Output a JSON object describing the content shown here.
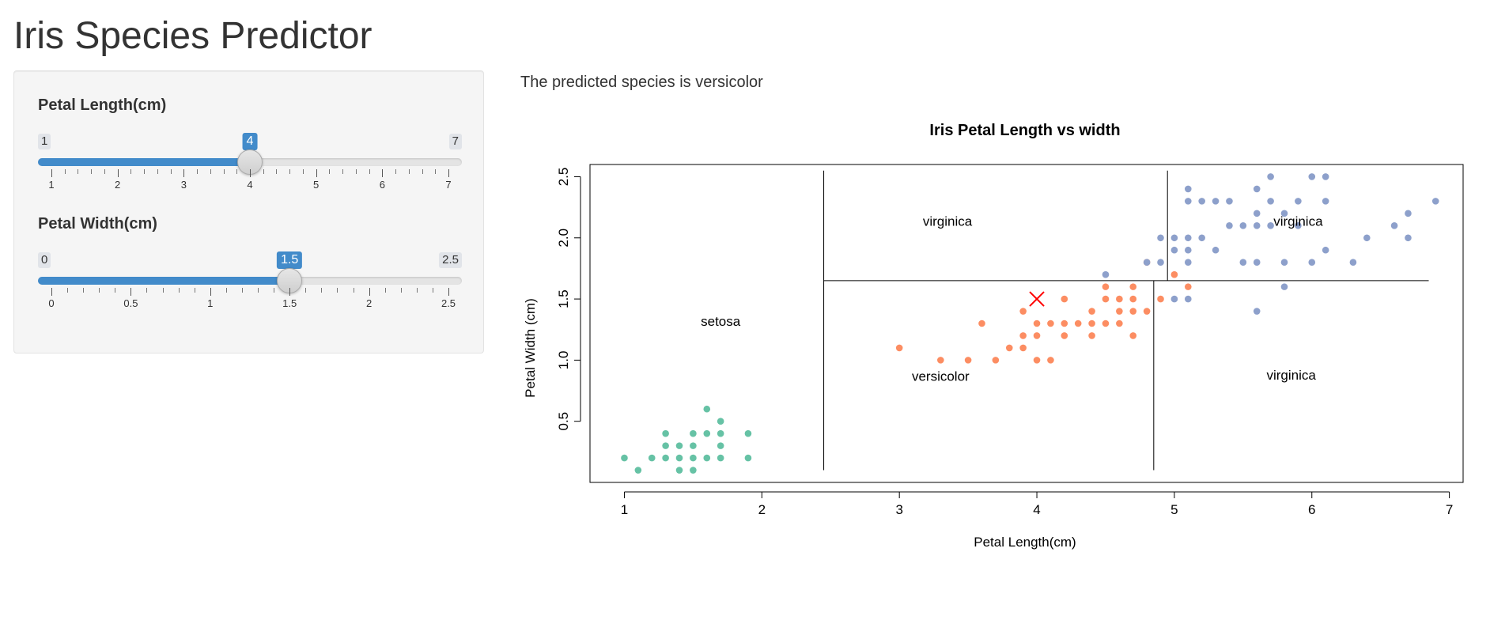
{
  "app": {
    "title": "Iris Species Predictor"
  },
  "sidebar": {
    "petal_length": {
      "label": "Petal Length(cm)",
      "min_label": "1",
      "max_label": "7",
      "value_label": "4",
      "value": 4,
      "min": 1,
      "max": 7,
      "ticks": [
        "1",
        "2",
        "3",
        "4",
        "5",
        "6",
        "7"
      ],
      "minor_per_major": 4
    },
    "petal_width": {
      "label": "Petal Width(cm)",
      "min_label": "0",
      "max_label": "2.5",
      "value_label": "1.5",
      "value": 1.5,
      "min": 0,
      "max": 2.5,
      "ticks": [
        "0",
        "0.5",
        "1",
        "1.5",
        "2",
        "2.5"
      ],
      "minor_per_major": 4
    }
  },
  "main": {
    "prediction_text": "The predicted species is versicolor"
  },
  "colors": {
    "accent": "#428bca",
    "setosa": "#66c2a5",
    "versicolor": "#fc8d62",
    "virginica": "#8da0cb",
    "marker": "#ff0000"
  },
  "chart_data": {
    "type": "scatter",
    "title": "Iris Petal Length vs width",
    "xlabel": "Petal Length(cm)",
    "ylabel": "Petal Width (cm)",
    "xlim": [
      0.75,
      7.1
    ],
    "ylim": [
      0.0,
      2.6
    ],
    "xticks": [
      "1",
      "2",
      "3",
      "4",
      "5",
      "6",
      "7"
    ],
    "yticks": [
      "0.5",
      "1.0",
      "1.5",
      "2.0",
      "2.5"
    ],
    "series": [
      {
        "name": "setosa",
        "color": "#66c2a5",
        "points": [
          [
            1.0,
            0.2
          ],
          [
            1.1,
            0.1
          ],
          [
            1.2,
            0.2
          ],
          [
            1.3,
            0.2
          ],
          [
            1.3,
            0.3
          ],
          [
            1.3,
            0.4
          ],
          [
            1.4,
            0.1
          ],
          [
            1.4,
            0.2
          ],
          [
            1.4,
            0.3
          ],
          [
            1.5,
            0.1
          ],
          [
            1.5,
            0.2
          ],
          [
            1.5,
            0.3
          ],
          [
            1.5,
            0.4
          ],
          [
            1.6,
            0.2
          ],
          [
            1.6,
            0.4
          ],
          [
            1.6,
            0.6
          ],
          [
            1.7,
            0.2
          ],
          [
            1.7,
            0.3
          ],
          [
            1.7,
            0.4
          ],
          [
            1.7,
            0.5
          ],
          [
            1.9,
            0.2
          ],
          [
            1.9,
            0.4
          ]
        ]
      },
      {
        "name": "versicolor",
        "color": "#fc8d62",
        "points": [
          [
            3.0,
            1.1
          ],
          [
            3.3,
            1.0
          ],
          [
            3.5,
            1.0
          ],
          [
            3.6,
            1.3
          ],
          [
            3.7,
            1.0
          ],
          [
            3.8,
            1.1
          ],
          [
            3.9,
            1.1
          ],
          [
            3.9,
            1.2
          ],
          [
            3.9,
            1.4
          ],
          [
            4.0,
            1.0
          ],
          [
            4.0,
            1.2
          ],
          [
            4.0,
            1.3
          ],
          [
            4.1,
            1.0
          ],
          [
            4.1,
            1.3
          ],
          [
            4.2,
            1.2
          ],
          [
            4.2,
            1.3
          ],
          [
            4.2,
            1.5
          ],
          [
            4.3,
            1.3
          ],
          [
            4.4,
            1.2
          ],
          [
            4.4,
            1.3
          ],
          [
            4.4,
            1.4
          ],
          [
            4.5,
            1.3
          ],
          [
            4.5,
            1.5
          ],
          [
            4.5,
            1.6
          ],
          [
            4.6,
            1.3
          ],
          [
            4.6,
            1.4
          ],
          [
            4.6,
            1.5
          ],
          [
            4.7,
            1.2
          ],
          [
            4.7,
            1.4
          ],
          [
            4.7,
            1.5
          ],
          [
            4.7,
            1.6
          ],
          [
            4.8,
            1.4
          ],
          [
            4.8,
            1.8
          ],
          [
            4.9,
            1.5
          ],
          [
            5.0,
            1.7
          ],
          [
            5.1,
            1.6
          ]
        ]
      },
      {
        "name": "virginica",
        "color": "#8da0cb",
        "points": [
          [
            4.5,
            1.7
          ],
          [
            4.8,
            1.8
          ],
          [
            4.9,
            1.8
          ],
          [
            4.9,
            2.0
          ],
          [
            5.0,
            1.5
          ],
          [
            5.0,
            1.9
          ],
          [
            5.0,
            2.0
          ],
          [
            5.1,
            1.5
          ],
          [
            5.1,
            1.8
          ],
          [
            5.1,
            1.9
          ],
          [
            5.1,
            2.0
          ],
          [
            5.1,
            2.3
          ],
          [
            5.1,
            2.4
          ],
          [
            5.2,
            2.0
          ],
          [
            5.2,
            2.3
          ],
          [
            5.3,
            1.9
          ],
          [
            5.3,
            2.3
          ],
          [
            5.4,
            2.1
          ],
          [
            5.4,
            2.3
          ],
          [
            5.5,
            1.8
          ],
          [
            5.5,
            2.1
          ],
          [
            5.6,
            1.4
          ],
          [
            5.6,
            1.8
          ],
          [
            5.6,
            2.1
          ],
          [
            5.6,
            2.2
          ],
          [
            5.6,
            2.4
          ],
          [
            5.7,
            2.1
          ],
          [
            5.7,
            2.3
          ],
          [
            5.7,
            2.5
          ],
          [
            5.8,
            1.6
          ],
          [
            5.8,
            1.8
          ],
          [
            5.8,
            2.2
          ],
          [
            5.9,
            2.1
          ],
          [
            5.9,
            2.3
          ],
          [
            6.0,
            1.8
          ],
          [
            6.0,
            2.5
          ],
          [
            6.1,
            1.9
          ],
          [
            6.1,
            2.3
          ],
          [
            6.1,
            2.5
          ],
          [
            6.3,
            1.8
          ],
          [
            6.4,
            2.0
          ],
          [
            6.6,
            2.1
          ],
          [
            6.7,
            2.0
          ],
          [
            6.7,
            2.2
          ],
          [
            6.9,
            2.3
          ]
        ]
      }
    ],
    "split_lines": [
      {
        "orientation": "vertical",
        "x": 2.45,
        "y_from": 0.1,
        "y_to": 2.55
      },
      {
        "orientation": "horizontal",
        "y": 1.65,
        "x_from": 2.45,
        "x_to": 6.85
      },
      {
        "orientation": "vertical",
        "x": 4.85,
        "y_from": 0.1,
        "y_to": 1.65
      },
      {
        "orientation": "vertical",
        "x": 4.95,
        "y_from": 1.65,
        "y_to": 2.55
      }
    ],
    "region_labels": [
      {
        "text": "setosa",
        "x": 1.7,
        "y": 1.28
      },
      {
        "text": "virginica",
        "x": 3.35,
        "y": 2.1
      },
      {
        "text": "virginica",
        "x": 5.9,
        "y": 2.1
      },
      {
        "text": "versicolor",
        "x": 3.3,
        "y": 0.83
      },
      {
        "text": "virginica",
        "x": 5.85,
        "y": 0.84
      }
    ],
    "prediction_point": {
      "x": 4,
      "y": 1.5,
      "symbol": "x"
    },
    "grid": false
  }
}
